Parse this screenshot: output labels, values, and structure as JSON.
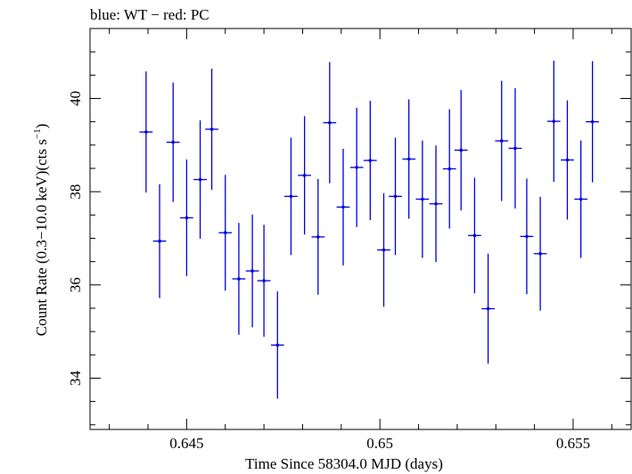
{
  "chart_data": {
    "type": "scatter",
    "title": "blue: WT − red: PC",
    "xlabel": "Time Since 58304.0 MJD (days)",
    "ylabel_main": "Count Rate (0.3−10.0 keV)(cts s",
    "ylabel_sup": "−1",
    "ylabel_close": ")",
    "xlim": [
      0.6425,
      0.6565
    ],
    "ylim": [
      32.9,
      41.5
    ],
    "x_ticks": [
      0.645,
      0.65,
      0.655
    ],
    "x_tick_labels": [
      "0.645",
      "0.65",
      "0.655"
    ],
    "y_ticks": [
      34,
      36,
      38,
      40
    ],
    "y_tick_labels": [
      "34",
      "36",
      "38",
      "40"
    ],
    "grid": false,
    "colors": {
      "series": "#0000dd",
      "axes": "#000000"
    },
    "series": [
      {
        "name": "WT",
        "x_halfwidth": 0.00017,
        "points": [
          {
            "x": 0.64395,
            "y": 39.28,
            "err": 1.3
          },
          {
            "x": 0.6443,
            "y": 36.94,
            "err": 1.22
          },
          {
            "x": 0.64465,
            "y": 39.06,
            "err": 1.28
          },
          {
            "x": 0.645,
            "y": 37.44,
            "err": 1.25
          },
          {
            "x": 0.64535,
            "y": 38.26,
            "err": 1.27
          },
          {
            "x": 0.64565,
            "y": 39.34,
            "err": 1.3
          },
          {
            "x": 0.646,
            "y": 37.12,
            "err": 1.24
          },
          {
            "x": 0.64635,
            "y": 36.13,
            "err": 1.2
          },
          {
            "x": 0.6467,
            "y": 36.3,
            "err": 1.21
          },
          {
            "x": 0.647,
            "y": 36.09,
            "err": 1.2
          },
          {
            "x": 0.64735,
            "y": 34.71,
            "err": 1.15
          },
          {
            "x": 0.6477,
            "y": 37.9,
            "err": 1.26
          },
          {
            "x": 0.64805,
            "y": 38.35,
            "err": 1.27
          },
          {
            "x": 0.6484,
            "y": 37.03,
            "err": 1.24
          },
          {
            "x": 0.6487,
            "y": 39.48,
            "err": 1.3
          },
          {
            "x": 0.64905,
            "y": 37.67,
            "err": 1.25
          },
          {
            "x": 0.6494,
            "y": 38.52,
            "err": 1.28
          },
          {
            "x": 0.64975,
            "y": 38.67,
            "err": 1.28
          },
          {
            "x": 0.6501,
            "y": 36.75,
            "err": 1.22
          },
          {
            "x": 0.6504,
            "y": 37.9,
            "err": 1.26
          },
          {
            "x": 0.65075,
            "y": 38.7,
            "err": 1.28
          },
          {
            "x": 0.6511,
            "y": 37.84,
            "err": 1.26
          },
          {
            "x": 0.65145,
            "y": 37.74,
            "err": 1.25
          },
          {
            "x": 0.6518,
            "y": 38.49,
            "err": 1.28
          },
          {
            "x": 0.6521,
            "y": 38.89,
            "err": 1.29
          },
          {
            "x": 0.65245,
            "y": 37.06,
            "err": 1.24
          },
          {
            "x": 0.6528,
            "y": 35.49,
            "err": 1.18
          },
          {
            "x": 0.65315,
            "y": 39.09,
            "err": 1.29
          },
          {
            "x": 0.6535,
            "y": 38.93,
            "err": 1.29
          },
          {
            "x": 0.6538,
            "y": 37.04,
            "err": 1.24
          },
          {
            "x": 0.65415,
            "y": 36.67,
            "err": 1.22
          },
          {
            "x": 0.6545,
            "y": 39.51,
            "err": 1.3
          },
          {
            "x": 0.65485,
            "y": 38.68,
            "err": 1.28
          },
          {
            "x": 0.6552,
            "y": 37.84,
            "err": 1.26
          },
          {
            "x": 0.6555,
            "y": 39.5,
            "err": 1.3
          }
        ]
      }
    ]
  }
}
